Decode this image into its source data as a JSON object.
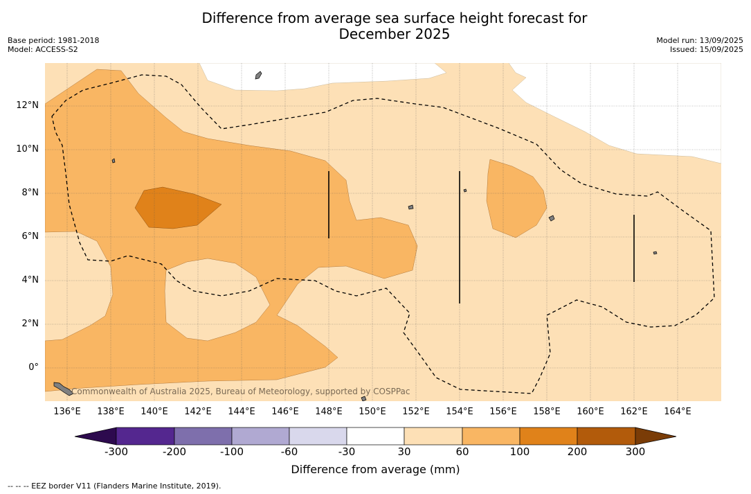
{
  "title": "Difference from average sea surface height forecast for December 2025",
  "meta_left": {
    "base_period": "Base period: 1981-2018",
    "model": "Model: ACCESS-S2"
  },
  "meta_right": {
    "model_run": "Model run: 13/09/2025",
    "issued": "Issued: 15/09/2025"
  },
  "copyright": "Commonwealth of Australia 2025, Bureau of Meteorology, supported by COSPPac",
  "footnote": "-- -- -- EEZ border V11 (Flanders Marine Institute, 2019).",
  "latitude_labels": [
    "12°N",
    "10°N",
    "8°N",
    "6°N",
    "4°N",
    "2°N",
    "0°"
  ],
  "longitude_labels": [
    "136°E",
    "138°E",
    "140°E",
    "142°E",
    "144°E",
    "146°E",
    "148°E",
    "150°E",
    "152°E",
    "154°E",
    "156°E",
    "158°E",
    "160°E",
    "162°E",
    "164°E"
  ],
  "colorbar": {
    "label": "Difference from average (mm)",
    "ticks": [
      "-300",
      "-200",
      "-100",
      "-60",
      "-30",
      "30",
      "60",
      "100",
      "200",
      "300"
    ],
    "colors": {
      "below_-300": "#2d0a4e",
      "-300_-200": "#54278f",
      "-200_-100": "#7e6fac",
      "-100_-60": "#b0a9d2",
      "-60_-30": "#d9d8ec",
      "-30_30": "#ffffff",
      "30_60": "#fde0b6",
      "60_100": "#f9b663",
      "100_200": "#e0821a",
      "200_300": "#b25b0b",
      "above_300": "#7a3c07"
    }
  },
  "map_colors": {
    "land": "#808080",
    "grid": "#555555",
    "eez": "#000000"
  }
}
